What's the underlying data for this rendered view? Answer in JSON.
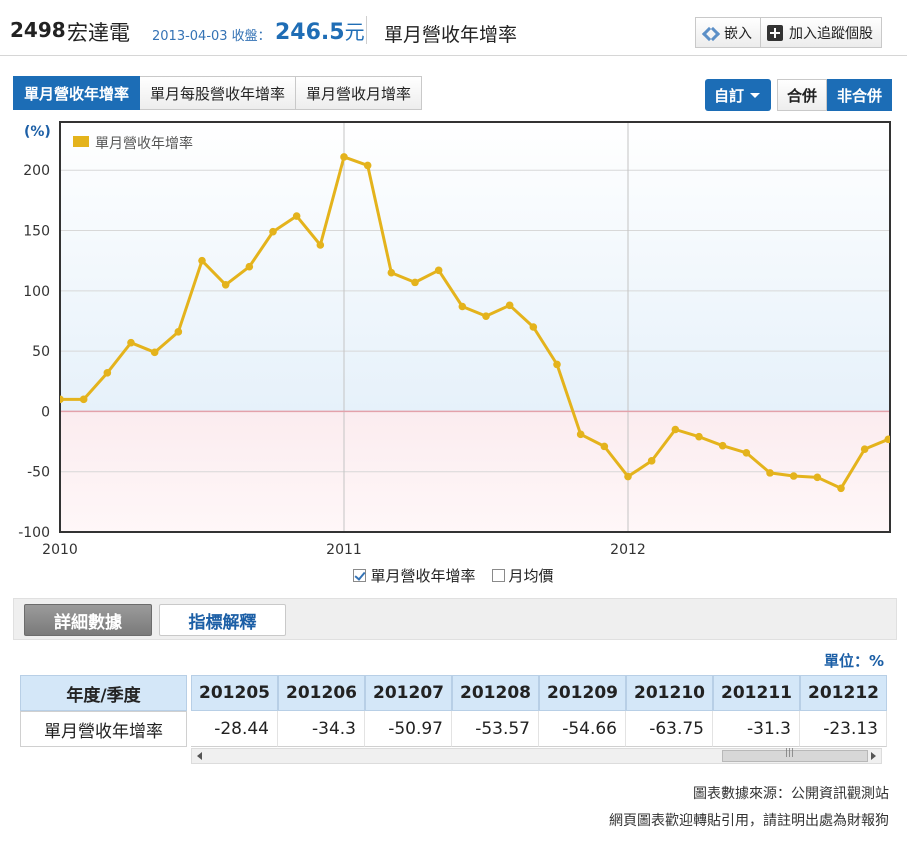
{
  "header": {
    "stock_code": "2498",
    "stock_name": "宏達電",
    "date_label": "2013-04-03 收盤：",
    "price": "246.5",
    "price_unit": "元",
    "page_title": "單月營收年增率",
    "embed_label": "嵌入",
    "track_label": "加入追蹤個股"
  },
  "tabs": [
    {
      "label": "單月營收年增率",
      "active": true
    },
    {
      "label": "單月每股營收年增率",
      "active": false
    },
    {
      "label": "單月營收月增率",
      "active": false
    }
  ],
  "controls": {
    "custom_label": "自訂",
    "consolidated_label": "合併",
    "non_consolidated_label": "非合併"
  },
  "chart_data": {
    "type": "line",
    "ylabel": "(%)",
    "ylim": [
      -100,
      240
    ],
    "yticks": [
      200,
      150,
      100,
      50,
      0,
      -50,
      -100
    ],
    "xtick_labels": [
      "2010",
      "2011",
      "2012"
    ],
    "legend_position": "top-left",
    "grid": true,
    "series": [
      {
        "name": "單月營收年增率",
        "color": "#e4b31c",
        "x": [
          "2010-01",
          "2010-02",
          "2010-03",
          "2010-04",
          "2010-05",
          "2010-06",
          "2010-07",
          "2010-08",
          "2010-09",
          "2010-10",
          "2010-11",
          "2010-12",
          "2011-01",
          "2011-02",
          "2011-03",
          "2011-04",
          "2011-05",
          "2011-06",
          "2011-07",
          "2011-08",
          "2011-09",
          "2011-10",
          "2011-11",
          "2011-12",
          "2012-01",
          "2012-02",
          "2012-03",
          "2012-04",
          "2012-05",
          "2012-06",
          "2012-07",
          "2012-08",
          "2012-09",
          "2012-10",
          "2012-11",
          "2012-12"
        ],
        "values": [
          10,
          10,
          32,
          57,
          49,
          66,
          125,
          105,
          120,
          149,
          162,
          138,
          211,
          204,
          115,
          107,
          117,
          87,
          79,
          88,
          70,
          39,
          -19,
          -29,
          -54,
          -41,
          -15,
          -21,
          -28.44,
          -34.3,
          -50.97,
          -53.57,
          -54.66,
          -63.75,
          -31.3,
          -23.13
        ]
      }
    ]
  },
  "checkboxes": [
    {
      "label": "單月營收年增率",
      "checked": true
    },
    {
      "label": "月均價",
      "checked": false
    }
  ],
  "detail_tabs": {
    "detail_label": "詳細數據",
    "explain_label": "指標解釋"
  },
  "unit_label": "單位：%",
  "table": {
    "corner_header": "年度/季度",
    "row_label": "單月營收年增率",
    "columns": [
      "201205",
      "201206",
      "201207",
      "201208",
      "201209",
      "201210",
      "201211",
      "201212"
    ],
    "values": [
      "-28.44",
      "-34.3",
      "-50.97",
      "-53.57",
      "-54.66",
      "-63.75",
      "-31.3",
      "-23.13"
    ]
  },
  "footer": {
    "source": "圖表數據來源：公開資訊觀測站",
    "note": "網頁圖表歡迎轉貼引用，請註明出處為財報狗"
  }
}
